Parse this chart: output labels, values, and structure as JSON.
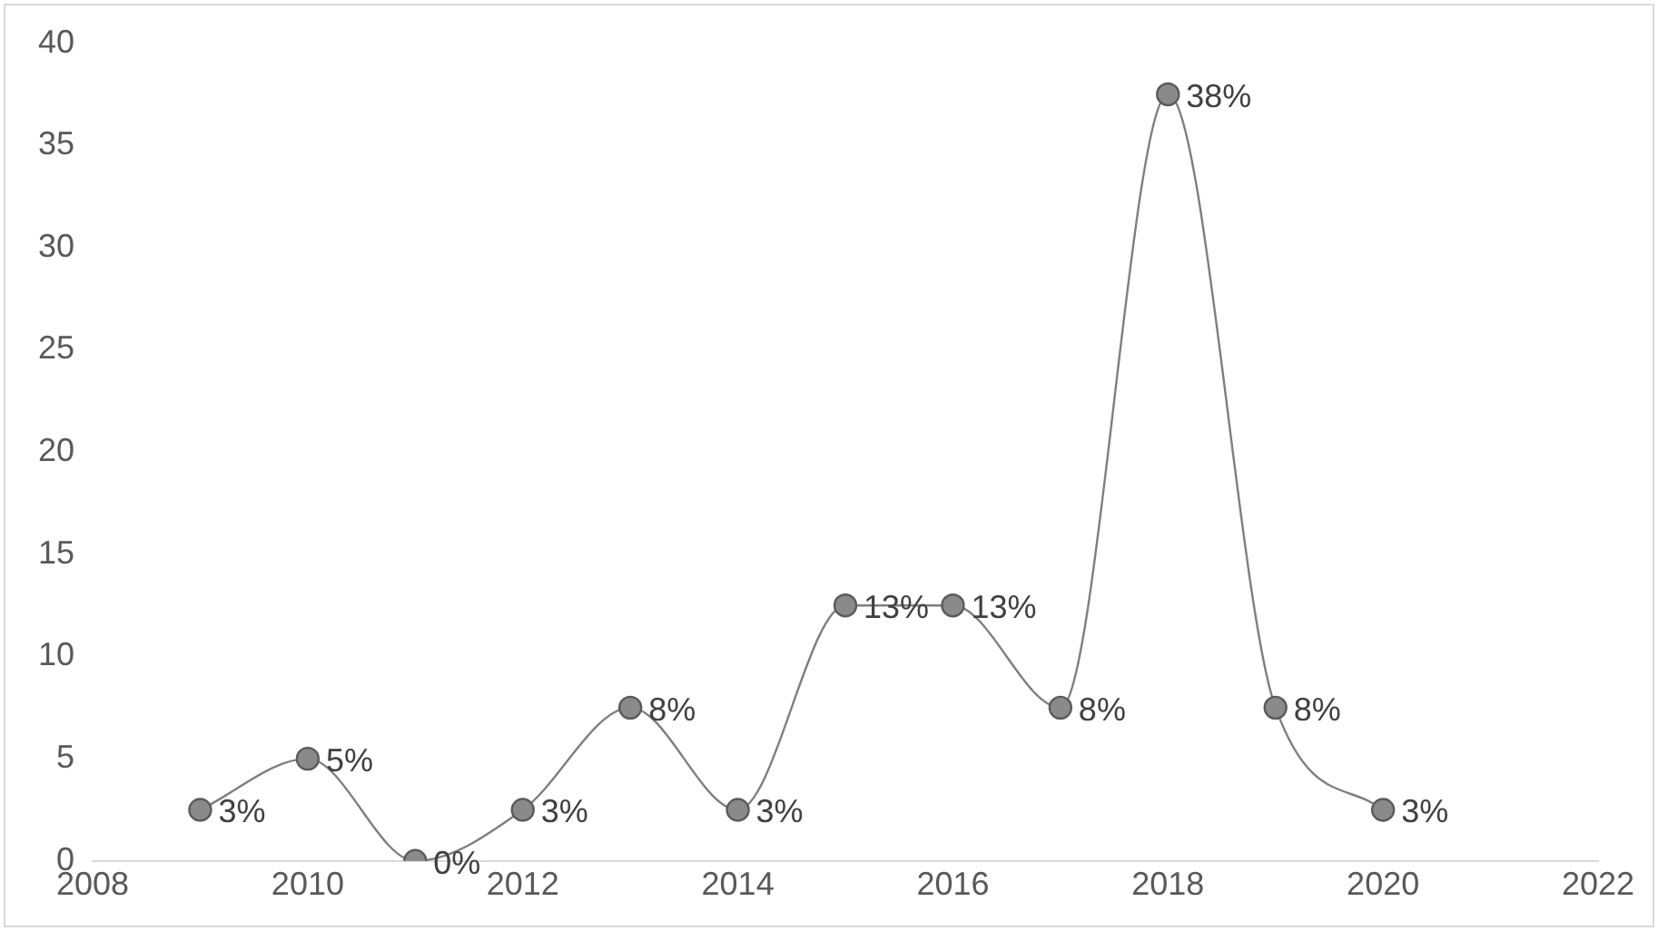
{
  "chart_data": {
    "type": "line",
    "x": [
      2009,
      2010,
      2011,
      2012,
      2013,
      2014,
      2015,
      2016,
      2017,
      2018,
      2019,
      2020
    ],
    "series": [
      {
        "color": "#7f7f7f",
        "values": [
          2.5,
          5,
          0,
          2.5,
          7.5,
          2.5,
          12.5,
          12.5,
          7.5,
          37.5,
          7.5,
          2.5
        ],
        "value_labels": [
          "3%",
          "5%",
          "0%",
          "3%",
          "8%",
          "3%",
          "13%",
          "13%",
          "8%",
          "38%",
          "8%",
          "3%"
        ]
      }
    ],
    "xlim": [
      2008,
      2022
    ],
    "xticks": [
      2008,
      2010,
      2012,
      2014,
      2016,
      2018,
      2020,
      2022
    ],
    "ylim": [
      0,
      40
    ],
    "yticks": [
      0,
      5,
      10,
      15,
      20,
      25,
      30,
      35,
      40
    ],
    "grid": false,
    "legend": false,
    "marker": "circle",
    "line_style": "solid"
  }
}
